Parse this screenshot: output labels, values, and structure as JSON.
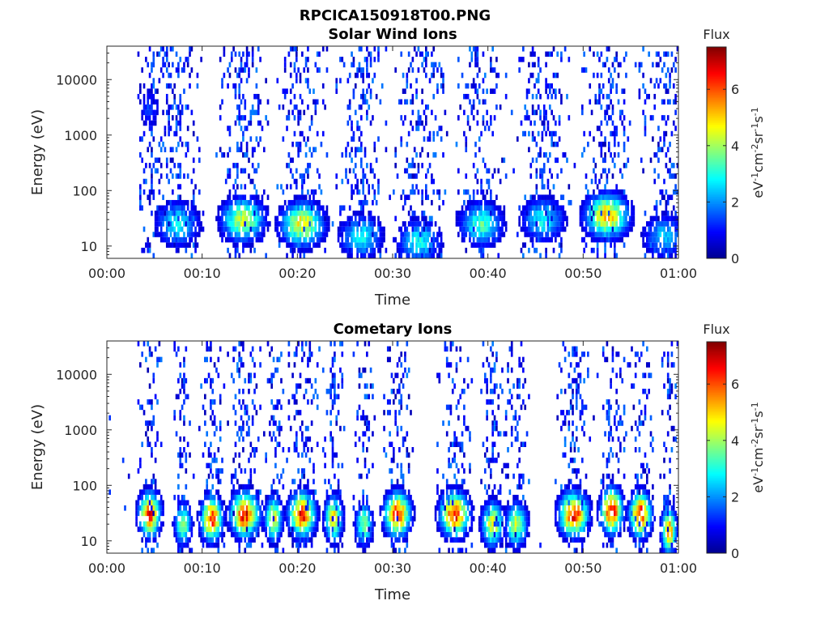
{
  "figure_title": "RPCICA150918T00.PNG",
  "colors": {
    "jet": [
      "#00008f",
      "#0000ff",
      "#0080ff",
      "#00ffff",
      "#80ff80",
      "#ffff00",
      "#ff8000",
      "#ff0000",
      "#800000"
    ]
  },
  "chart_data": [
    {
      "type": "heatmap",
      "title": "Solar Wind Ions",
      "xlabel": "Time",
      "ylabel": "Energy (eV)",
      "x_ticks": [
        "00:00",
        "00:10",
        "00:20",
        "00:30",
        "00:40",
        "00:50",
        "01:00"
      ],
      "x_range_minutes": [
        0,
        60
      ],
      "y_scale": "log",
      "y_ticks": [
        "10",
        "100",
        "1000",
        "10000"
      ],
      "y_tick_values": [
        10,
        100,
        1000,
        10000
      ],
      "ylim": [
        6,
        40000
      ],
      "colorbar": {
        "title": "Flux",
        "label": "eV-1cm-2sr-1s-1",
        "ticks": [
          "0",
          "2",
          "4",
          "6"
        ],
        "range": [
          0,
          7.5
        ]
      },
      "bursts": [
        {
          "t": 4.5,
          "width": 1.5,
          "peak_energy": 3000,
          "peak_flux": 1.5
        },
        {
          "t": 7.4,
          "width": 3.0,
          "peak_energy": 25,
          "peak_flux": 3.0
        },
        {
          "t": 14.3,
          "width": 3.0,
          "peak_energy": 30,
          "peak_flux": 4.5
        },
        {
          "t": 20.5,
          "width": 3.0,
          "peak_energy": 25,
          "peak_flux": 5.0
        },
        {
          "t": 26.7,
          "width": 3.0,
          "peak_energy": 15,
          "peak_flux": 3.0
        },
        {
          "t": 32.8,
          "width": 3.0,
          "peak_energy": 12,
          "peak_flux": 3.0
        },
        {
          "t": 39.3,
          "width": 3.0,
          "peak_energy": 25,
          "peak_flux": 3.5
        },
        {
          "t": 45.8,
          "width": 3.0,
          "peak_energy": 30,
          "peak_flux": 3.0
        },
        {
          "t": 52.5,
          "width": 3.0,
          "peak_energy": 35,
          "peak_flux": 5.5
        },
        {
          "t": 58.5,
          "width": 3.0,
          "peak_energy": 15,
          "peak_flux": 2.5
        }
      ]
    },
    {
      "type": "heatmap",
      "title": "Cometary Ions",
      "xlabel": "Time",
      "ylabel": "Energy (eV)",
      "x_ticks": [
        "00:00",
        "00:10",
        "00:20",
        "00:30",
        "00:40",
        "00:50",
        "01:00"
      ],
      "x_range_minutes": [
        0,
        60
      ],
      "y_scale": "log",
      "y_ticks": [
        "10",
        "100",
        "1000",
        "10000"
      ],
      "y_tick_values": [
        10,
        100,
        1000,
        10000
      ],
      "ylim": [
        6,
        40000
      ],
      "colorbar": {
        "title": "Flux",
        "label": "eV-1cm-2sr-1s-1",
        "ticks": [
          "0",
          "2",
          "4",
          "6"
        ],
        "range": [
          0,
          7.5
        ]
      },
      "bursts": [
        {
          "t": 4.5,
          "width": 1.5,
          "peak_energy": 30,
          "peak_flux": 6.5
        },
        {
          "t": 8.0,
          "width": 1.2,
          "peak_energy": 20,
          "peak_flux": 4.0
        },
        {
          "t": 11.0,
          "width": 1.5,
          "peak_energy": 25,
          "peak_flux": 6.5
        },
        {
          "t": 14.5,
          "width": 2.0,
          "peak_energy": 30,
          "peak_flux": 6.8
        },
        {
          "t": 17.5,
          "width": 1.2,
          "peak_energy": 25,
          "peak_flux": 5.0
        },
        {
          "t": 20.5,
          "width": 1.8,
          "peak_energy": 30,
          "peak_flux": 6.8
        },
        {
          "t": 23.8,
          "width": 1.2,
          "peak_energy": 25,
          "peak_flux": 5.5
        },
        {
          "t": 27.0,
          "width": 1.2,
          "peak_energy": 20,
          "peak_flux": 4.0
        },
        {
          "t": 30.5,
          "width": 1.8,
          "peak_energy": 30,
          "peak_flux": 6.8
        },
        {
          "t": 36.5,
          "width": 2.0,
          "peak_energy": 30,
          "peak_flux": 6.8
        },
        {
          "t": 40.5,
          "width": 1.5,
          "peak_energy": 20,
          "peak_flux": 5.0
        },
        {
          "t": 43.0,
          "width": 1.5,
          "peak_energy": 20,
          "peak_flux": 4.5
        },
        {
          "t": 49.0,
          "width": 2.0,
          "peak_energy": 30,
          "peak_flux": 6.8
        },
        {
          "t": 53.0,
          "width": 1.5,
          "peak_energy": 35,
          "peak_flux": 7.2
        },
        {
          "t": 56.0,
          "width": 1.5,
          "peak_energy": 30,
          "peak_flux": 6.8
        },
        {
          "t": 59.0,
          "width": 1.0,
          "peak_energy": 15,
          "peak_flux": 6.0
        }
      ]
    }
  ]
}
